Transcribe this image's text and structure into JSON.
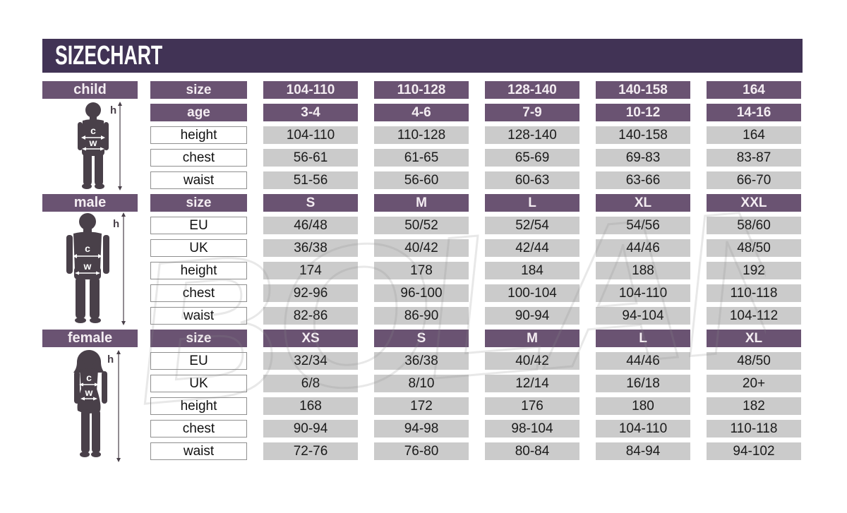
{
  "title": "SIZE CHART",
  "watermark_text": "BOLAND",
  "figure_labels": {
    "height": "h",
    "chest": "c",
    "waist": "w"
  },
  "colors": {
    "title_bar": "#413355",
    "header_cell": "#6A5372",
    "data_cell": "#CBCBCB",
    "label_cell_border": "#8F8F8F",
    "silhouette": "#494049",
    "background": "#FFFFFF"
  },
  "chart_data": {
    "type": "table",
    "tables": [
      {
        "name": "child",
        "rows": [
          {
            "type": "header",
            "label": "size",
            "values": [
              "104-110",
              "110-128",
              "128-140",
              "140-158",
              "164"
            ]
          },
          {
            "type": "header",
            "label": "age",
            "values": [
              "3-4",
              "4-6",
              "7-9",
              "10-12",
              "14-16"
            ]
          },
          {
            "type": "data",
            "label": "height",
            "values": [
              "104-110",
              "110-128",
              "128-140",
              "140-158",
              "164"
            ]
          },
          {
            "type": "data",
            "label": "chest",
            "values": [
              "56-61",
              "61-65",
              "65-69",
              "69-83",
              "83-87"
            ]
          },
          {
            "type": "data",
            "label": "waist",
            "values": [
              "51-56",
              "56-60",
              "60-63",
              "63-66",
              "66-70"
            ]
          }
        ]
      },
      {
        "name": "male",
        "rows": [
          {
            "type": "header",
            "label": "size",
            "values": [
              "S",
              "M",
              "L",
              "XL",
              "XXL"
            ]
          },
          {
            "type": "data",
            "label": "EU",
            "values": [
              "46/48",
              "50/52",
              "52/54",
              "54/56",
              "58/60"
            ]
          },
          {
            "type": "data",
            "label": "UK",
            "values": [
              "36/38",
              "40/42",
              "42/44",
              "44/46",
              "48/50"
            ]
          },
          {
            "type": "data",
            "label": "height",
            "values": [
              "174",
              "178",
              "184",
              "188",
              "192"
            ]
          },
          {
            "type": "data",
            "label": "chest",
            "values": [
              "92-96",
              "96-100",
              "100-104",
              "104-110",
              "110-118"
            ]
          },
          {
            "type": "data",
            "label": "waist",
            "values": [
              "82-86",
              "86-90",
              "90-94",
              "94-104",
              "104-112"
            ]
          }
        ]
      },
      {
        "name": "female",
        "rows": [
          {
            "type": "header",
            "label": "size",
            "values": [
              "XS",
              "S",
              "M",
              "L",
              "XL"
            ]
          },
          {
            "type": "data",
            "label": "EU",
            "values": [
              "32/34",
              "36/38",
              "40/42",
              "44/46",
              "48/50"
            ]
          },
          {
            "type": "data",
            "label": "UK",
            "values": [
              "6/8",
              "8/10",
              "12/14",
              "16/18",
              "20+"
            ]
          },
          {
            "type": "data",
            "label": "height",
            "values": [
              "168",
              "172",
              "176",
              "180",
              "182"
            ]
          },
          {
            "type": "data",
            "label": "chest",
            "values": [
              "90-94",
              "94-98",
              "98-104",
              "104-110",
              "110-118"
            ]
          },
          {
            "type": "data",
            "label": "waist",
            "values": [
              "72-76",
              "76-80",
              "80-84",
              "84-94",
              "94-102"
            ]
          }
        ]
      }
    ]
  }
}
